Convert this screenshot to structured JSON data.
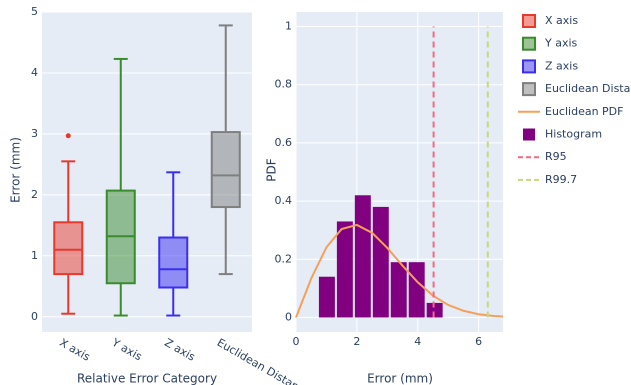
{
  "chart_data": [
    {
      "type": "box",
      "ylabel": "Error (mm)",
      "xlabel": "Relative Error Category",
      "categories": [
        "X axis",
        "Y axis",
        "Z axis",
        "Euclidean Distance"
      ],
      "ylim": [
        -0.25,
        5
      ],
      "yticks": [
        0,
        1,
        2,
        3,
        4,
        5
      ],
      "grid": true,
      "series": [
        {
          "name": "X axis",
          "color": "#e8392d",
          "whislo": 0.05,
          "q1": 0.7,
          "median": 1.1,
          "q3": 1.55,
          "whishi": 2.55,
          "outliers": [
            2.97
          ]
        },
        {
          "name": "Y axis",
          "color": "#3a8a2e",
          "whislo": 0.02,
          "q1": 0.55,
          "median": 1.32,
          "q3": 2.07,
          "whishi": 4.23,
          "outliers": []
        },
        {
          "name": "Z axis",
          "color": "#3a2ef0",
          "whislo": 0.02,
          "q1": 0.48,
          "median": 0.78,
          "q3": 1.3,
          "whishi": 2.37,
          "outliers": []
        },
        {
          "name": "Euclidean Distance",
          "color": "#7f7f7f",
          "whislo": 0.7,
          "q1": 1.8,
          "median": 2.32,
          "q3": 3.03,
          "whishi": 4.78,
          "outliers": []
        }
      ]
    },
    {
      "type": "histogram",
      "xlabel": "Error (mm)",
      "ylabel": "PDF",
      "xlim": [
        0,
        6.8
      ],
      "xticks": [
        0,
        2,
        4,
        6
      ],
      "ylim": [
        -0.05,
        1.05
      ],
      "yticks": [
        0,
        0.2,
        0.4,
        0.6,
        0.8,
        1
      ],
      "grid": true,
      "pdf": {
        "name": "Euclidean PDF",
        "color": "#f5a05a",
        "x": [
          0,
          0.5,
          1,
          1.5,
          2,
          2.5,
          3,
          3.5,
          4,
          4.5,
          5,
          5.5,
          6,
          6.5,
          6.8
        ],
        "values": [
          0,
          0.134,
          0.241,
          0.304,
          0.318,
          0.291,
          0.239,
          0.178,
          0.121,
          0.075,
          0.043,
          0.023,
          0.011,
          0.005,
          0.003
        ]
      },
      "histogram": {
        "name": "Histogram",
        "color": "#800080",
        "bins": [
          0.72,
          1.31,
          1.9,
          2.49,
          3.08,
          3.67,
          4.26,
          4.85
        ],
        "values": [
          0.14,
          0.33,
          0.42,
          0.38,
          0.19,
          0.19,
          0.05
        ]
      },
      "vlines": [
        {
          "name": "R95",
          "color": "#f06a82",
          "x": 4.52,
          "y": [
            0,
            1
          ]
        },
        {
          "name": "R99.7",
          "color": "#c8d87a",
          "x": 6.3,
          "y": [
            0,
            1
          ]
        }
      ]
    }
  ]
}
